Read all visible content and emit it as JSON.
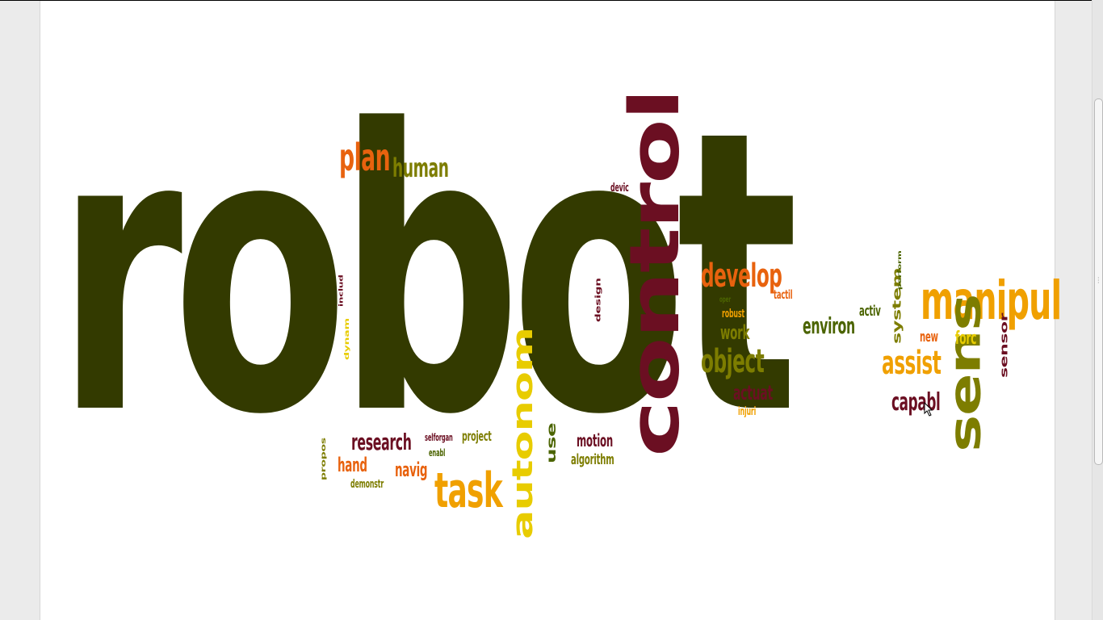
{
  "colors": {
    "olive_dark": "#333a00",
    "maroon": "#6b0f22",
    "orange": "#e8620e",
    "amber": "#f0a000",
    "yellow": "#e8cc00",
    "olive": "#7d7d00",
    "green": "#4b6400"
  },
  "words": {
    "robot": "robot",
    "control": "control",
    "manipul": "manipul",
    "sens": "sens",
    "task": "task",
    "autonom": "autonom",
    "plan": "plan",
    "human": "human",
    "develop": "develop",
    "object": "object",
    "assist": "assist",
    "environ": "environ",
    "research": "research",
    "capabl": "capabl",
    "system": "system",
    "actuat": "actuat",
    "work": "work",
    "navig": "navig",
    "hand": "hand",
    "motion": "motion",
    "algorithm": "algorithm",
    "use": "use",
    "project": "project",
    "sensor": "sensor",
    "forc": "forc",
    "new": "new",
    "activ": "activ",
    "tactil": "tactil",
    "robust": "robust",
    "injuri": "injuri",
    "devic": "devic",
    "design": "design",
    "dynam": "dynam",
    "includ": "includ",
    "propos": "propos",
    "demonstr": "demonstr",
    "selforgan": "selforgan",
    "enabl": "enabl",
    "oper": "oper",
    "perform": "perform"
  }
}
